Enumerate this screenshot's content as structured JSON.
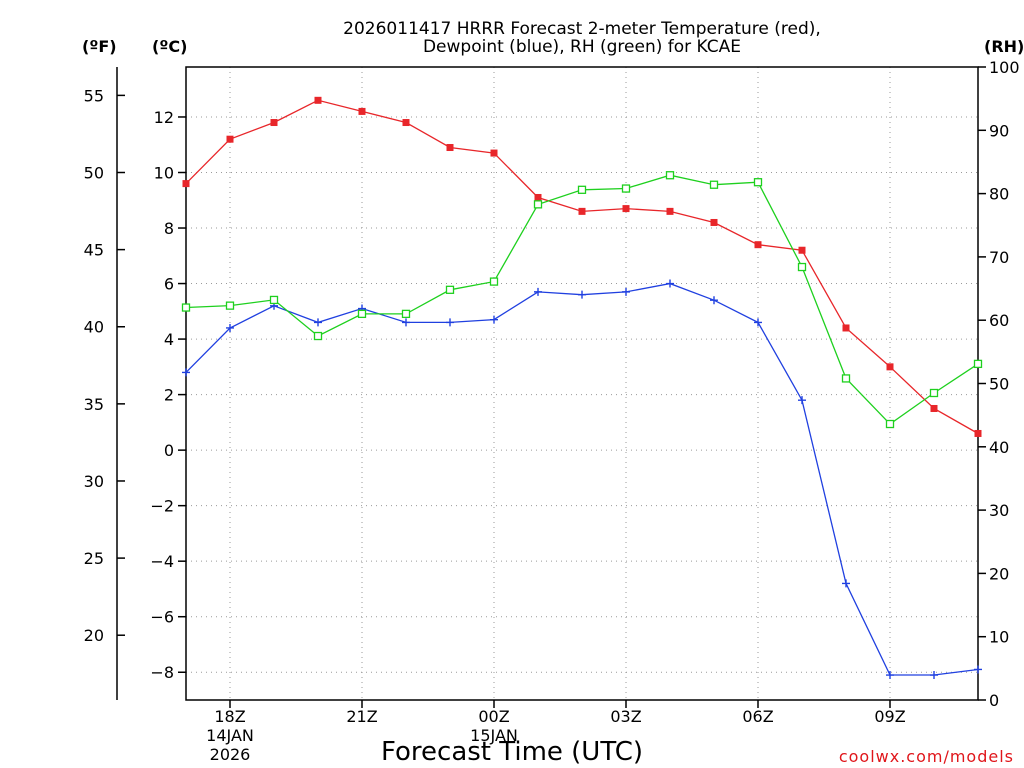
{
  "chart_data": {
    "type": "line",
    "title": [
      "2026011417 HRRR Forecast 2-meter Temperature (red),",
      "Dewpoint (blue), RH (green) for KCAE"
    ],
    "xlabel": "Forecast Time (UTC)",
    "watermark": "coolwx.com/models",
    "left_unit_f": "(ºF)",
    "left_unit_c": "(ºC)",
    "right_unit": "(RH)",
    "x_hours": [
      17,
      18,
      19,
      20,
      21,
      22,
      23,
      24,
      25,
      26,
      27,
      28,
      29,
      30,
      31,
      32,
      33,
      34,
      35
    ],
    "x_range": [
      17,
      35
    ],
    "x_ticks": [
      {
        "h": 18,
        "label": "18Z",
        "sub": [
          "14JAN",
          "2026"
        ]
      },
      {
        "h": 21,
        "label": "21Z",
        "sub": []
      },
      {
        "h": 24,
        "label": "00Z",
        "sub": [
          "15JAN"
        ]
      },
      {
        "h": 27,
        "label": "03Z",
        "sub": []
      },
      {
        "h": 30,
        "label": "06Z",
        "sub": []
      },
      {
        "h": 33,
        "label": "09Z",
        "sub": []
      }
    ],
    "y_celsius": {
      "range": [
        -9.0,
        13.8
      ],
      "ticks": [
        12,
        10,
        8,
        6,
        4,
        2,
        0,
        -2,
        -4,
        -6,
        -8
      ]
    },
    "y_fahrenheit": {
      "ticks": [
        55,
        50,
        45,
        40,
        35,
        30,
        25,
        20
      ]
    },
    "y_rh": {
      "range": [
        0,
        100
      ],
      "ticks": [
        100,
        90,
        80,
        70,
        60,
        50,
        40,
        30,
        20,
        10,
        0
      ]
    },
    "series": [
      {
        "name": "Temperature",
        "unit": "C",
        "color": "#e8262a",
        "marker": "filled-square",
        "values": [
          9.6,
          11.2,
          11.8,
          12.6,
          12.2,
          11.8,
          10.9,
          10.7,
          9.1,
          8.6,
          8.7,
          8.6,
          8.2,
          7.4,
          7.2,
          4.4,
          3.0,
          1.5,
          0.6
        ]
      },
      {
        "name": "Dewpoint",
        "unit": "C",
        "color": "#2040e0",
        "marker": "plus",
        "values": [
          2.8,
          4.4,
          5.2,
          4.6,
          5.1,
          4.6,
          4.6,
          4.7,
          5.7,
          5.6,
          5.7,
          6.0,
          5.4,
          4.6,
          1.8,
          -4.8,
          -8.1,
          -8.1,
          -7.9
        ]
      },
      {
        "name": "RH",
        "unit": "%",
        "color": "#1ed01e",
        "marker": "open-square",
        "values": [
          62,
          62.3,
          63.2,
          57.5,
          61,
          61,
          64.8,
          66.1,
          78.3,
          80.6,
          80.8,
          82.9,
          81.4,
          81.8,
          68.4,
          50.8,
          43.6,
          48.5,
          53.1
        ]
      }
    ]
  }
}
